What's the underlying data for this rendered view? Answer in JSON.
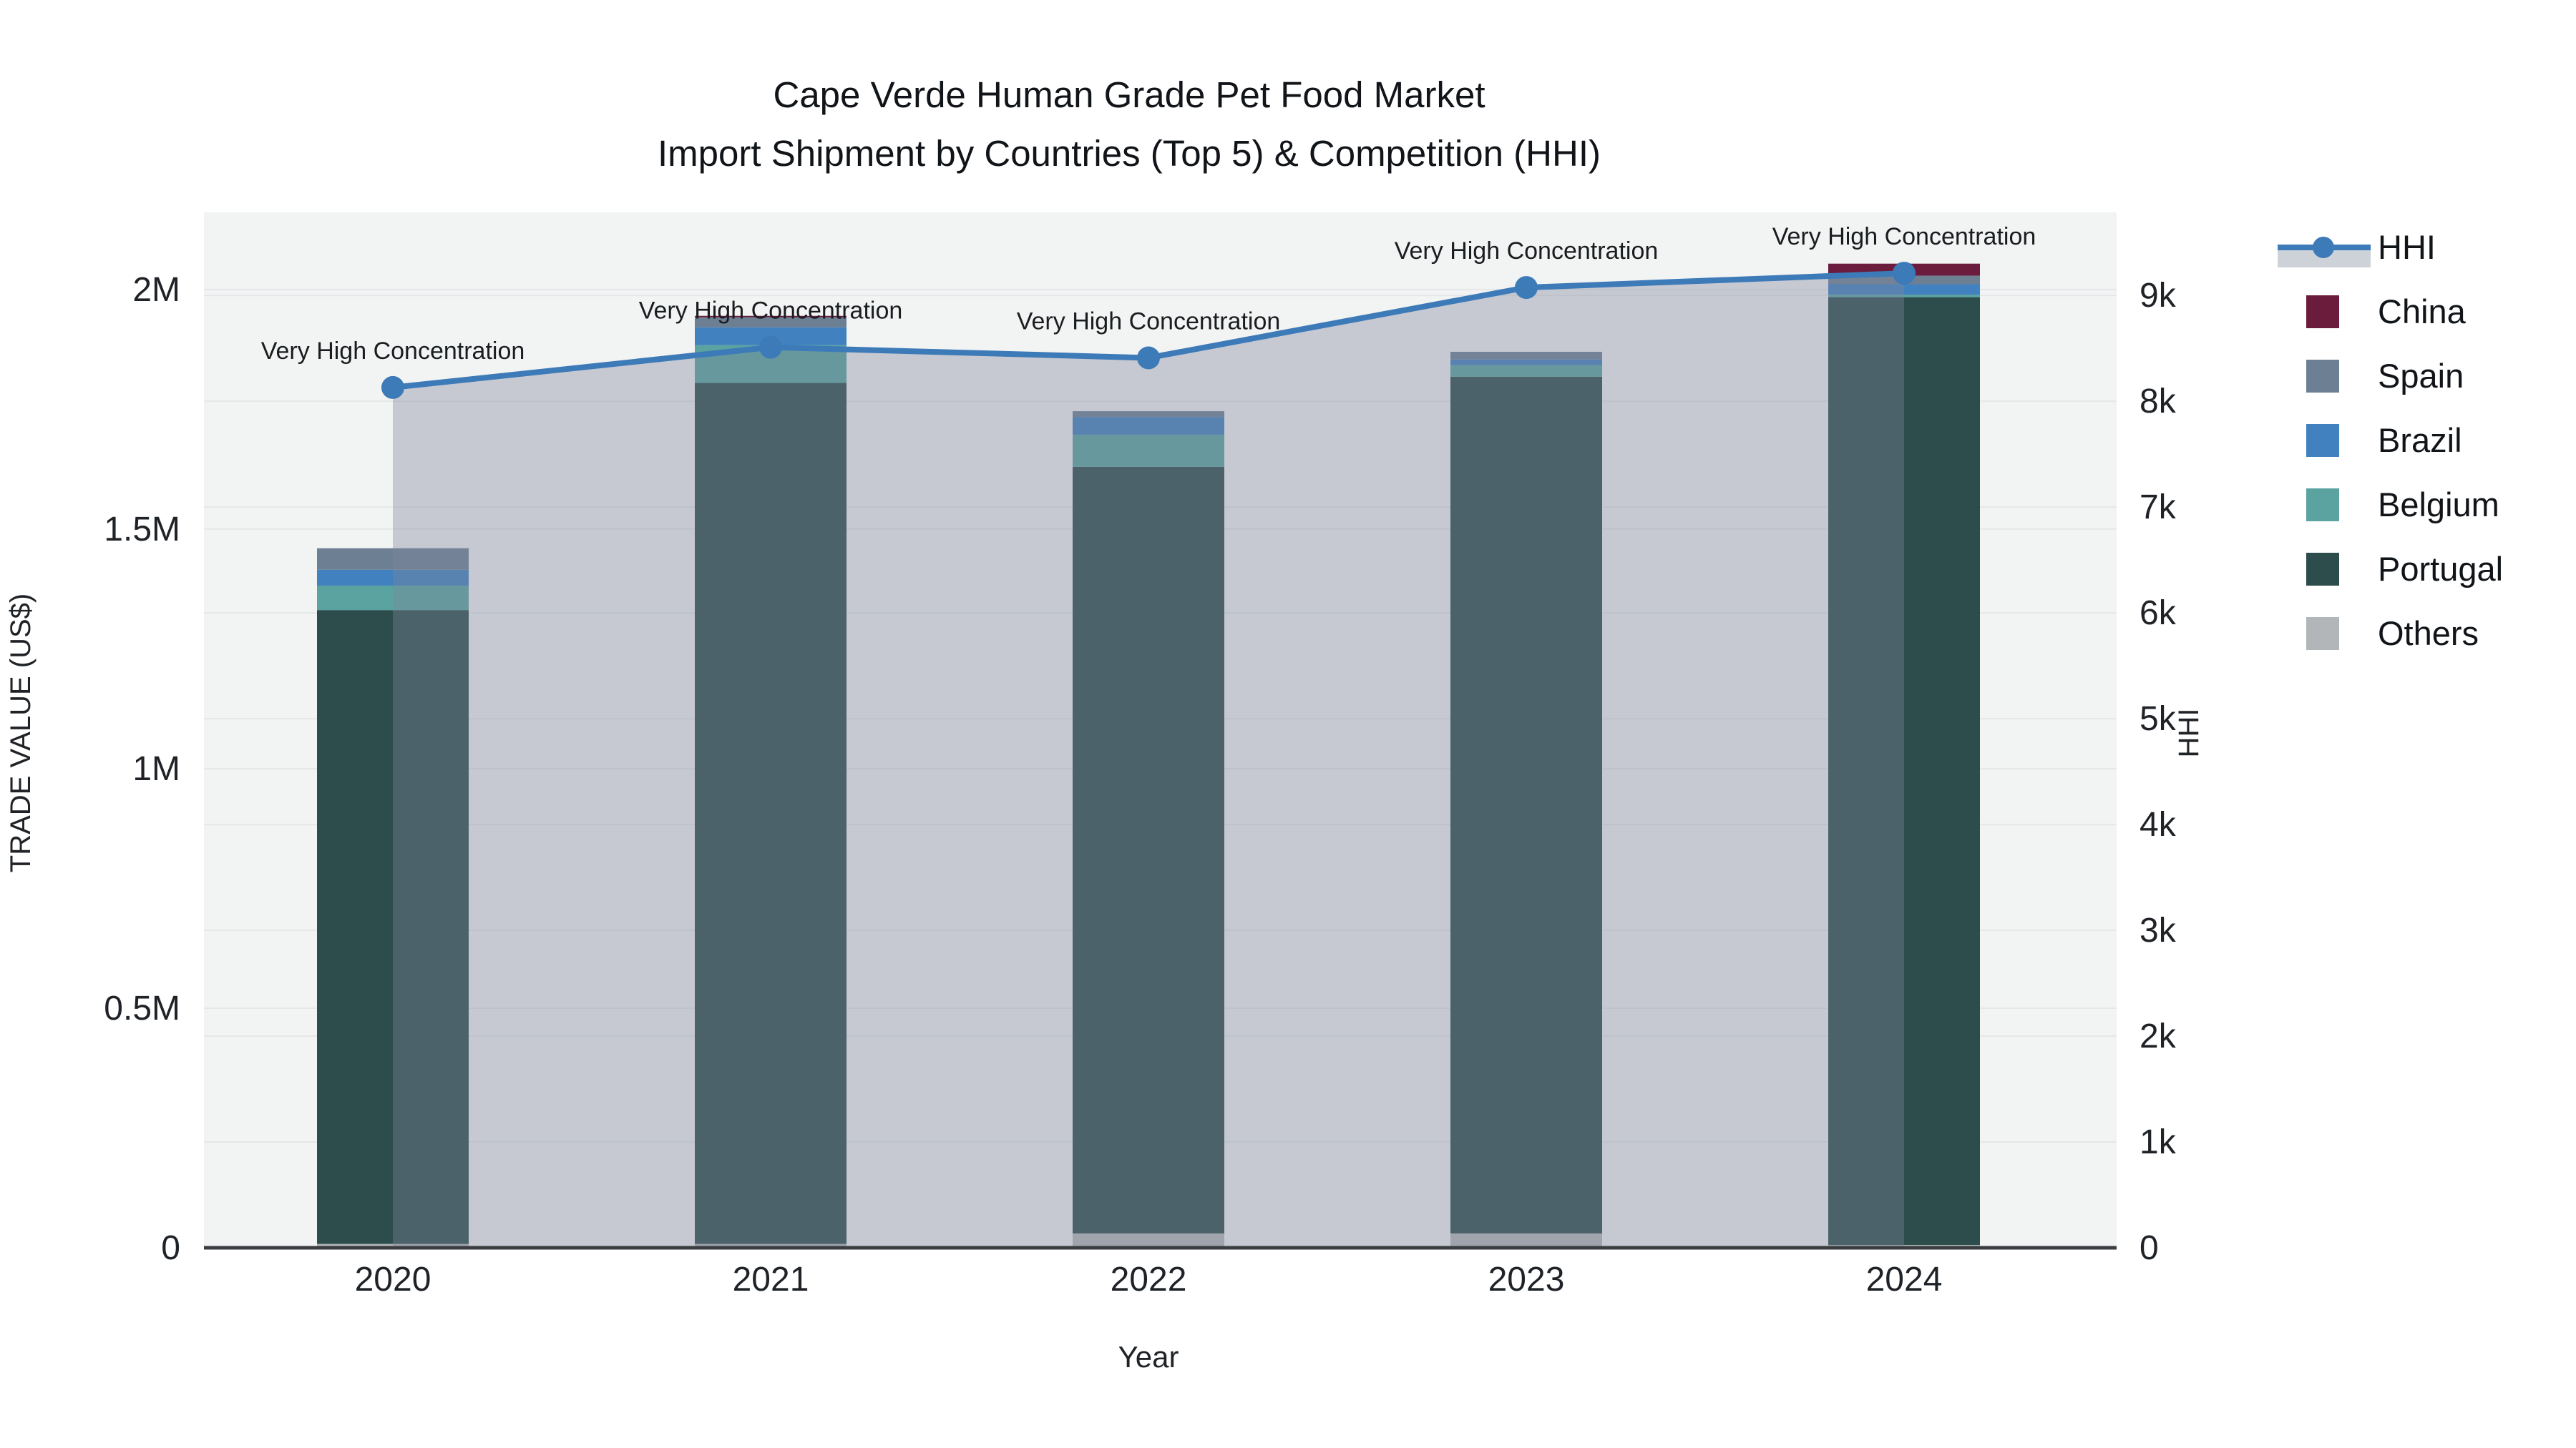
{
  "title": {
    "line1": "Cape Verde Human Grade Pet Food Market",
    "line2": "Import Shipment by Countries (Top 5) & Competition (HHI)"
  },
  "x_axis": {
    "title": "Year",
    "ticks": [
      "2020",
      "2021",
      "2022",
      "2023",
      "2024"
    ]
  },
  "y_axis": {
    "title": "TRADE VALUE (US$)",
    "ticks": [
      {
        "v": 0,
        "label": "0"
      },
      {
        "v": 500000,
        "label": "0.5M"
      },
      {
        "v": 1000000,
        "label": "1M"
      },
      {
        "v": 1500000,
        "label": "1.5M"
      },
      {
        "v": 2000000,
        "label": "2M"
      }
    ]
  },
  "y2_axis": {
    "title": "HHI",
    "ticks": [
      {
        "v": 0,
        "label": "0"
      },
      {
        "v": 1000,
        "label": "1k"
      },
      {
        "v": 2000,
        "label": "2k"
      },
      {
        "v": 3000,
        "label": "3k"
      },
      {
        "v": 4000,
        "label": "4k"
      },
      {
        "v": 5000,
        "label": "5k"
      },
      {
        "v": 6000,
        "label": "6k"
      },
      {
        "v": 7000,
        "label": "7k"
      },
      {
        "v": 8000,
        "label": "8k"
      },
      {
        "v": 9000,
        "label": "9k"
      }
    ]
  },
  "annotation_text": "Very High Concentration",
  "legend": {
    "items": [
      {
        "label": "HHI",
        "type": "line",
        "color": "#3d7ab8"
      },
      {
        "label": "China",
        "type": "swatch",
        "color": "#6b1c3d"
      },
      {
        "label": "Spain",
        "type": "swatch",
        "color": "#6d8093"
      },
      {
        "label": "Brazil",
        "type": "swatch",
        "color": "#4181bf"
      },
      {
        "label": "Belgium",
        "type": "swatch",
        "color": "#5aa3a0"
      },
      {
        "label": "Portugal",
        "type": "swatch",
        "color": "#2d4c4c"
      },
      {
        "label": "Others",
        "type": "swatch",
        "color": "#b3b6b8"
      }
    ]
  },
  "colors": {
    "plot_bg": "#f2f3f3",
    "gridline": "#e5e7e8",
    "axis_spine": "#3a3d40",
    "hhi_line": "#3d7ab8",
    "hhi_fill": "rgba(125,135,155,0.38)",
    "text": "#1f2327"
  },
  "chart_data": {
    "type": "combo: stacked bar + line",
    "categories": [
      "2020",
      "2021",
      "2022",
      "2023",
      "2024"
    ],
    "bar_unit": "US$",
    "stack_order_bottom_to_top": [
      "Others",
      "Portugal",
      "Belgium",
      "Brazil",
      "Spain",
      "China"
    ],
    "series": [
      {
        "name": "China",
        "color": "#6b1c3d",
        "values": [
          0,
          3000,
          0,
          0,
          25000
        ]
      },
      {
        "name": "Spain",
        "color": "#6d8093",
        "values": [
          45000,
          21000,
          12000,
          16000,
          18000
        ]
      },
      {
        "name": "Brazil",
        "color": "#4181bf",
        "values": [
          33000,
          37000,
          37000,
          12000,
          22000
        ]
      },
      {
        "name": "Belgium",
        "color": "#5aa3a0",
        "values": [
          51000,
          79000,
          67000,
          24000,
          5000
        ]
      },
      {
        "name": "Portugal",
        "color": "#2d4c4c",
        "values": [
          1323000,
          1797000,
          1600000,
          1788000,
          1978000
        ]
      },
      {
        "name": "Others",
        "color": "#b3b6b8",
        "values": [
          8000,
          8000,
          30000,
          30000,
          6000
        ]
      }
    ],
    "line_series": {
      "name": "HHI",
      "axis": "right",
      "color": "#3d7ab8",
      "values": [
        8130,
        8510,
        8410,
        9075,
        9210
      ]
    },
    "y_left": {
      "label": "TRADE VALUE (US$)",
      "range": [
        0,
        2161000
      ]
    },
    "y_right": {
      "label": "HHI",
      "range": [
        0,
        9785
      ]
    },
    "xlabel": "Year",
    "grid": true,
    "legend_position": "right",
    "annotations": [
      "Very High Concentration",
      "Very High Concentration",
      "Very High Concentration",
      "Very High Concentration",
      "Very High Concentration"
    ]
  }
}
